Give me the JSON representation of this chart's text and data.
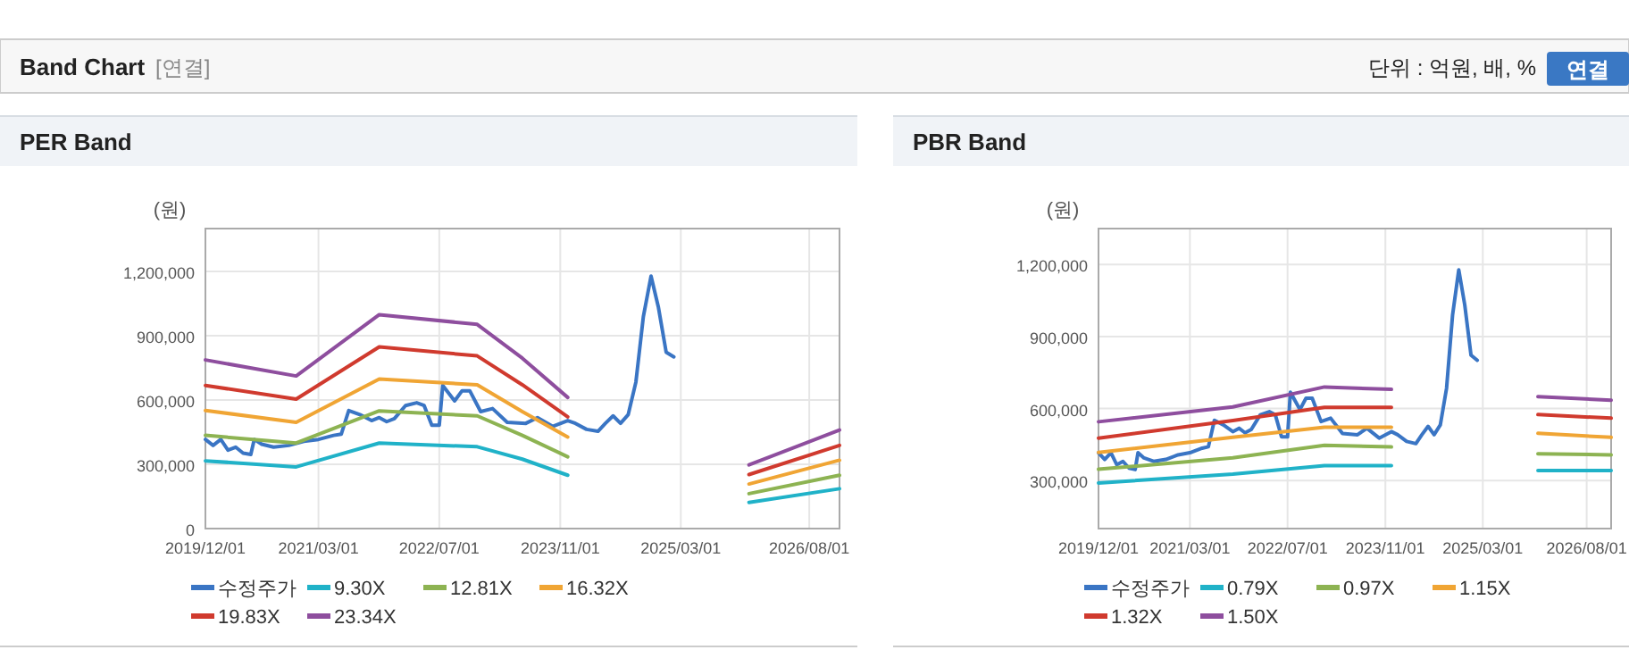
{
  "chart_data": [
    {
      "type": "line",
      "title": "PER Band",
      "ylabel": "(원)",
      "annotations": [
        "Band Chart",
        "[연결]",
        "단위 : 억원, 배, %",
        "연결"
      ],
      "xlim": [
        "2019-12-01",
        "2026-12-01"
      ],
      "xticks": [
        {
          "value": "2019-12-01",
          "label": "2019/12/01"
        },
        {
          "value": "2021-03-01",
          "label": "2021/03/01"
        },
        {
          "value": "2022-07-01",
          "label": "2022/07/01"
        },
        {
          "value": "2023-11-01",
          "label": "2023/11/01"
        },
        {
          "value": "2025-03-01",
          "label": "2025/03/01"
        },
        {
          "value": "2026-08-01",
          "label": "2026/08/01"
        }
      ],
      "ylim": [
        0,
        1400000
      ],
      "yticks": [
        {
          "value": 0,
          "label": "0"
        },
        {
          "value": 300000,
          "label": "300,000"
        },
        {
          "value": 600000,
          "label": "600,000"
        },
        {
          "value": 900000,
          "label": "900,000"
        },
        {
          "value": 1200000,
          "label": "1,200,000"
        }
      ],
      "grid": true,
      "legend": "bottom",
      "series": [
        {
          "name": "수정주가",
          "color": "#3a75c4",
          "x": [
            "2019-12-01",
            "2020-01-01",
            "2020-02-01",
            "2020-03-01",
            "2020-04-01",
            "2020-05-01",
            "2020-06-01",
            "2020-06-15",
            "2020-07-15",
            "2020-09-01",
            "2020-11-01",
            "2021-01-01",
            "2021-03-01",
            "2021-05-01",
            "2021-06-01",
            "2021-07-01",
            "2021-08-15",
            "2021-10-01",
            "2021-11-01",
            "2021-12-01",
            "2022-01-01",
            "2022-02-15",
            "2022-04-01",
            "2022-05-01",
            "2022-06-01",
            "2022-07-01",
            "2022-07-15",
            "2022-09-01",
            "2022-10-01",
            "2022-11-01",
            "2022-12-15",
            "2023-02-01",
            "2023-04-01",
            "2023-06-15",
            "2023-08-01",
            "2023-10-01",
            "2023-12-01",
            "2024-01-01",
            "2024-02-15",
            "2024-04-01",
            "2024-05-01",
            "2024-06-01",
            "2024-07-01",
            "2024-08-01",
            "2024-09-01",
            "2024-10-01",
            "2024-11-01",
            "2024-12-01",
            "2025-01-01",
            "2025-02-01"
          ],
          "values": [
            416000,
            388000,
            416000,
            366000,
            380000,
            352000,
            346000,
            416000,
            394000,
            380000,
            388000,
            407000,
            416000,
            435000,
            441000,
            551000,
            532000,
            504000,
            518000,
            499000,
            513000,
            574000,
            587000,
            574000,
            482000,
            482000,
            668000,
            596000,
            643000,
            643000,
            546000,
            560000,
            496000,
            491000,
            518000,
            477000,
            504000,
            491000,
            463000,
            454000,
            491000,
            526000,
            491000,
            532000,
            684000,
            989000,
            1178000,
            1031000,
            823000,
            801000
          ]
        },
        {
          "name": "9.30X",
          "color": "#20b2c8",
          "x": [
            "2019-12-01",
            "2020-12-01",
            "2021-11-01",
            "2022-12-01",
            "2023-06-01",
            "2023-12-01",
            "2024-12-01",
            "2025-12-01",
            "2026-12-01"
          ],
          "values": [
            316000,
            288000,
            399000,
            382000,
            324000,
            249000,
            null,
            122000,
            186000
          ]
        },
        {
          "name": "12.81X",
          "color": "#8db352",
          "x": [
            "2019-12-01",
            "2020-12-01",
            "2021-11-01",
            "2022-12-01",
            "2023-06-01",
            "2023-12-01",
            "2024-12-01",
            "2025-12-01",
            "2026-12-01"
          ],
          "values": [
            435000,
            399000,
            549000,
            526000,
            435000,
            335000,
            null,
            163000,
            249000
          ]
        },
        {
          "name": "16.32X",
          "color": "#f0a534",
          "x": [
            "2019-12-01",
            "2020-12-01",
            "2021-11-01",
            "2022-12-01",
            "2023-06-01",
            "2023-12-01",
            "2024-12-01",
            "2025-12-01",
            "2026-12-01"
          ],
          "values": [
            551000,
            496000,
            698000,
            671000,
            546000,
            427000,
            null,
            208000,
            319000
          ]
        },
        {
          "name": "19.83X",
          "color": "#d03a2e",
          "x": [
            "2019-12-01",
            "2020-12-01",
            "2021-11-01",
            "2022-12-01",
            "2023-06-01",
            "2023-12-01",
            "2024-12-01",
            "2025-12-01",
            "2026-12-01"
          ],
          "values": [
            668000,
            604000,
            848000,
            806000,
            671000,
            521000,
            null,
            252000,
            388000
          ]
        },
        {
          "name": "23.34X",
          "color": "#8e4e9e",
          "x": [
            "2019-12-01",
            "2020-12-01",
            "2021-11-01",
            "2022-12-01",
            "2023-06-01",
            "2023-12-01",
            "2024-12-01",
            "2025-12-01",
            "2026-12-01"
          ],
          "values": [
            787000,
            712000,
            998000,
            953000,
            795000,
            612000,
            null,
            297000,
            460000
          ]
        }
      ]
    },
    {
      "type": "line",
      "title": "PBR Band",
      "ylabel": "(원)",
      "xlim": [
        "2019-12-01",
        "2026-12-01"
      ],
      "xticks": [
        {
          "value": "2019-12-01",
          "label": "2019/12/01"
        },
        {
          "value": "2021-03-01",
          "label": "2021/03/01"
        },
        {
          "value": "2022-07-01",
          "label": "2022/07/01"
        },
        {
          "value": "2023-11-01",
          "label": "2023/11/01"
        },
        {
          "value": "2025-03-01",
          "label": "2025/03/01"
        },
        {
          "value": "2026-08-01",
          "label": "2026/08/01"
        }
      ],
      "ylim": [
        100000,
        1350000
      ],
      "yticks": [
        {
          "value": 300000,
          "label": "300,000"
        },
        {
          "value": 600000,
          "label": "600,000"
        },
        {
          "value": 900000,
          "label": "900,000"
        },
        {
          "value": 1200000,
          "label": "1,200,000"
        }
      ],
      "grid": true,
      "legend": "bottom",
      "series": [
        {
          "name": "수정주가",
          "color": "#3a75c4",
          "x": [
            "2019-12-01",
            "2020-01-01",
            "2020-02-01",
            "2020-03-01",
            "2020-04-01",
            "2020-05-01",
            "2020-06-01",
            "2020-06-15",
            "2020-07-15",
            "2020-09-01",
            "2020-11-01",
            "2021-01-01",
            "2021-03-01",
            "2021-05-01",
            "2021-06-01",
            "2021-07-01",
            "2021-08-15",
            "2021-10-01",
            "2021-11-01",
            "2021-12-01",
            "2022-01-01",
            "2022-02-15",
            "2022-04-01",
            "2022-05-01",
            "2022-06-01",
            "2022-07-01",
            "2022-07-15",
            "2022-09-01",
            "2022-10-01",
            "2022-11-01",
            "2022-12-15",
            "2023-02-01",
            "2023-04-01",
            "2023-06-15",
            "2023-08-01",
            "2023-10-01",
            "2023-12-01",
            "2024-01-01",
            "2024-02-15",
            "2024-04-01",
            "2024-05-01",
            "2024-06-01",
            "2024-07-01",
            "2024-08-01",
            "2024-09-01",
            "2024-10-01",
            "2024-11-01",
            "2024-12-01",
            "2025-01-01",
            "2025-02-01"
          ],
          "values": [
            416000,
            388000,
            416000,
            366000,
            380000,
            352000,
            346000,
            416000,
            394000,
            380000,
            388000,
            407000,
            416000,
            435000,
            441000,
            551000,
            532000,
            504000,
            518000,
            499000,
            513000,
            574000,
            587000,
            574000,
            482000,
            482000,
            668000,
            596000,
            643000,
            643000,
            546000,
            560000,
            496000,
            491000,
            518000,
            477000,
            504000,
            491000,
            463000,
            454000,
            491000,
            526000,
            491000,
            532000,
            684000,
            989000,
            1178000,
            1031000,
            823000,
            801000
          ]
        },
        {
          "name": "0.79X",
          "color": "#20b2c8",
          "x": [
            "2019-12-01",
            "2021-10-01",
            "2023-01-01",
            "2023-12-01",
            "2024-12-01",
            "2025-12-01",
            "2026-12-01"
          ],
          "values": [
            290000,
            327000,
            362000,
            362000,
            null,
            342000,
            342000
          ]
        },
        {
          "name": "0.97X",
          "color": "#8db352",
          "x": [
            "2019-12-01",
            "2021-10-01",
            "2023-01-01",
            "2023-12-01",
            "2024-12-01",
            "2025-12-01",
            "2026-12-01"
          ],
          "values": [
            347000,
            395000,
            447000,
            440000,
            null,
            412000,
            407000
          ]
        },
        {
          "name": "1.15X",
          "color": "#f0a534",
          "x": [
            "2019-12-01",
            "2021-10-01",
            "2023-01-01",
            "2023-12-01",
            "2024-12-01",
            "2025-12-01",
            "2026-12-01"
          ],
          "values": [
            417000,
            480000,
            522000,
            522000,
            null,
            497000,
            480000
          ]
        },
        {
          "name": "1.32X",
          "color": "#d03a2e",
          "x": [
            "2019-12-01",
            "2021-10-01",
            "2023-01-01",
            "2023-12-01",
            "2024-12-01",
            "2025-12-01",
            "2026-12-01"
          ],
          "values": [
            477000,
            550000,
            605000,
            605000,
            null,
            575000,
            560000
          ]
        },
        {
          "name": "1.50X",
          "color": "#8e4e9e",
          "x": [
            "2019-12-01",
            "2021-10-01",
            "2023-01-01",
            "2023-12-01",
            "2024-12-01",
            "2025-12-01",
            "2026-12-01"
          ],
          "values": [
            545000,
            607000,
            690000,
            680000,
            null,
            650000,
            635000
          ]
        }
      ]
    }
  ]
}
